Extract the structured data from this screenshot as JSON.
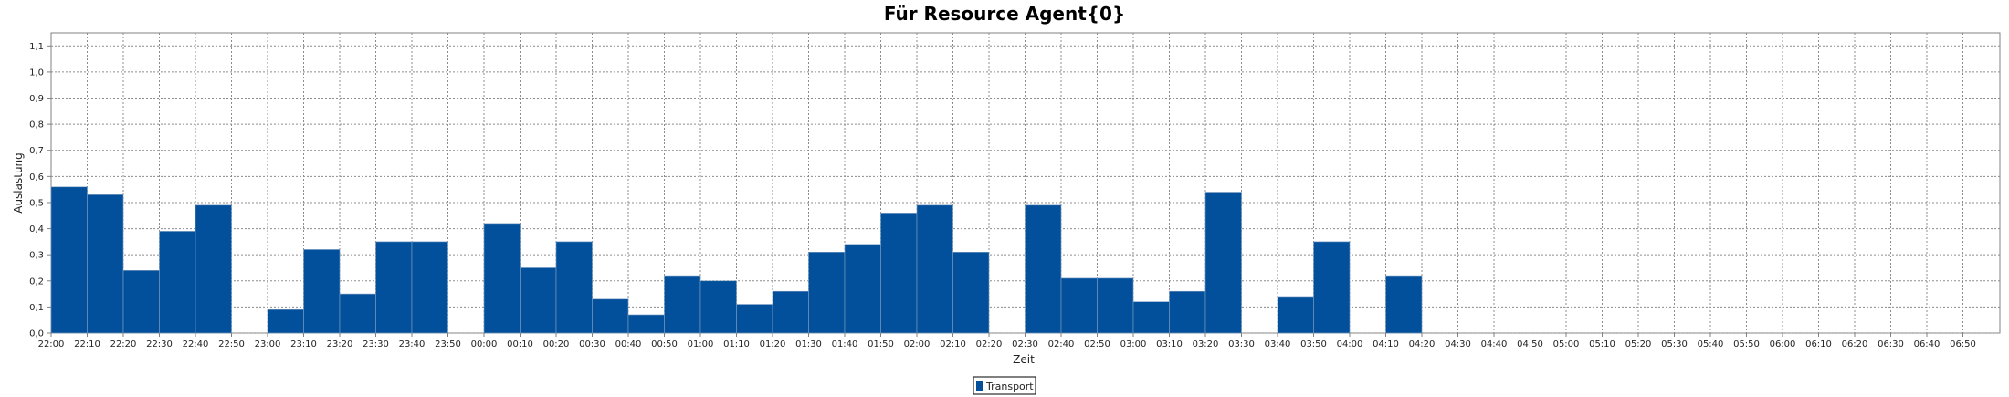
{
  "chart_data": {
    "type": "bar",
    "title": "Für Resource Agent{0}",
    "xlabel": "Zeit",
    "ylabel": "Auslastung",
    "ylim": [
      0,
      1.15
    ],
    "yticks": [
      0.0,
      0.1,
      0.2,
      0.3,
      0.4,
      0.5,
      0.6,
      0.7,
      0.8,
      0.9,
      1.0,
      1.1
    ],
    "ytick_labels": [
      "0,0",
      "0,1",
      "0,2",
      "0,3",
      "0,4",
      "0,5",
      "0,6",
      "0,7",
      "0,8",
      "0,9",
      "1,0",
      "1,1"
    ],
    "grid": true,
    "legend": "bottom-center",
    "categories": [
      "22:00",
      "22:10",
      "22:20",
      "22:30",
      "22:40",
      "22:50",
      "23:00",
      "23:10",
      "23:20",
      "23:30",
      "23:40",
      "23:50",
      "00:00",
      "00:10",
      "00:20",
      "00:30",
      "00:40",
      "00:50",
      "01:00",
      "01:10",
      "01:20",
      "01:30",
      "01:40",
      "01:50",
      "02:00",
      "02:10",
      "02:20",
      "02:30",
      "02:40",
      "02:50",
      "03:00",
      "03:10",
      "03:20",
      "03:30",
      "03:40",
      "03:50",
      "04:00",
      "04:10",
      "04:20",
      "04:30",
      "04:40",
      "04:50",
      "05:00",
      "05:10",
      "05:20",
      "05:30",
      "05:40",
      "05:50",
      "06:00",
      "06:10",
      "06:20",
      "06:30",
      "06:40",
      "06:50"
    ],
    "series": [
      {
        "name": "Transport",
        "color": "#02509b",
        "values": [
          0.56,
          0.53,
          0.24,
          0.39,
          0.49,
          0,
          0.09,
          0.32,
          0.15,
          0.35,
          0.35,
          0,
          0.42,
          0.25,
          0.35,
          0.13,
          0.07,
          0.22,
          0.2,
          0.11,
          0.16,
          0.31,
          0.34,
          0.46,
          0.49,
          0.31,
          0,
          0.49,
          0.21,
          0.21,
          0.12,
          0.16,
          0.54,
          0,
          0.14,
          0.35,
          0,
          0.22,
          0,
          0,
          0,
          0,
          0,
          0,
          0,
          0,
          0,
          0,
          0,
          0,
          0,
          0,
          0,
          0
        ]
      }
    ]
  }
}
